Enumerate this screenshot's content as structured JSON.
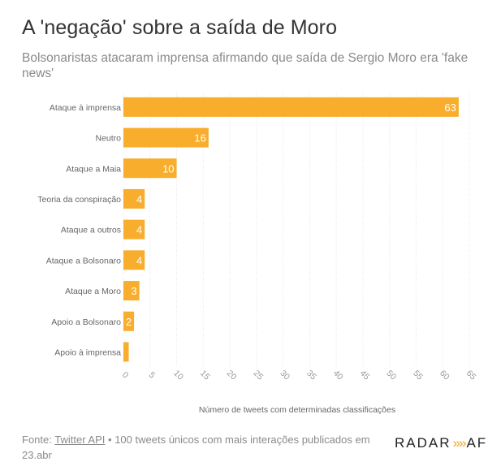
{
  "title": "A 'negação' sobre a saída de Moro",
  "subtitle": "Bolsonaristas atacaram imprensa afirmando que saída de Sergio Moro era 'fake news'",
  "footer": {
    "prefix": "Fonte:",
    "source_link": "Twitter API",
    "bullet": "•",
    "text": "100 tweets únicos com mais interações publicados em 23.abr"
  },
  "logo": {
    "left": "RADAR",
    "chevrons": "»»",
    "right": "AF"
  },
  "colors": {
    "bar": "#F8AE2C",
    "grid": "#e6e6e6"
  },
  "chart_data": {
    "type": "bar",
    "orientation": "horizontal",
    "categories": [
      "Ataque à imprensa",
      "Neutro",
      "Ataque a Maia",
      "Teoria da conspiração",
      "Ataque a outros",
      "Ataque a Bolsonaro",
      "Ataque a Moro",
      "Apoio a Bolsonaro",
      "Apoio à imprensa"
    ],
    "values": [
      63,
      16,
      10,
      4,
      4,
      4,
      3,
      2,
      1
    ],
    "data_labels": [
      "63",
      "16",
      "10",
      "4",
      "4",
      "4",
      "3",
      "2",
      ""
    ],
    "xlabel": "Número de tweets com determinadas classificações",
    "xlim": [
      0,
      65
    ],
    "xticks": [
      0,
      5,
      10,
      15,
      20,
      25,
      30,
      35,
      40,
      45,
      50,
      55,
      60,
      65
    ],
    "grid": true
  }
}
